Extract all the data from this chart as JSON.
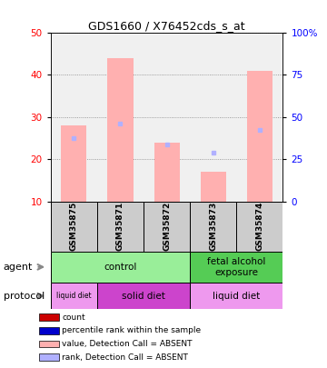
{
  "title": "GDS1660 / X76452cds_s_at",
  "samples": [
    "GSM35875",
    "GSM35871",
    "GSM35872",
    "GSM35873",
    "GSM35874"
  ],
  "bar_values": [
    28.0,
    44.0,
    24.0,
    17.0,
    41.0
  ],
  "rank_markers": [
    25.0,
    28.5,
    23.5,
    21.5,
    27.0
  ],
  "ylim_left": [
    10,
    50
  ],
  "ylim_right": [
    0,
    100
  ],
  "yticks_left": [
    10,
    20,
    30,
    40,
    50
  ],
  "yticks_right": [
    0,
    25,
    50,
    75,
    100
  ],
  "bar_color": "#ffb0b0",
  "rank_color": "#b0b0ff",
  "agent_row": [
    {
      "label": "control",
      "cols": [
        0,
        1,
        2
      ],
      "color": "#99ee99"
    },
    {
      "label": "fetal alcohol\nexposure",
      "cols": [
        3,
        4
      ],
      "color": "#55cc55"
    }
  ],
  "protocol_row": [
    {
      "label": "liquid diet",
      "cols": [
        0
      ],
      "color": "#ee99ee"
    },
    {
      "label": "solid diet",
      "cols": [
        1,
        2
      ],
      "color": "#cc44cc"
    },
    {
      "label": "liquid diet",
      "cols": [
        3,
        4
      ],
      "color": "#ee99ee"
    }
  ],
  "legend_items": [
    {
      "color": "#cc0000",
      "label": "count"
    },
    {
      "color": "#0000cc",
      "label": "percentile rank within the sample"
    },
    {
      "color": "#ffb0b0",
      "label": "value, Detection Call = ABSENT"
    },
    {
      "color": "#b0b0ff",
      "label": "rank, Detection Call = ABSENT"
    }
  ],
  "background_color": "#ffffff",
  "sample_bg": "#cccccc",
  "plot_bg": "#f0f0f0"
}
